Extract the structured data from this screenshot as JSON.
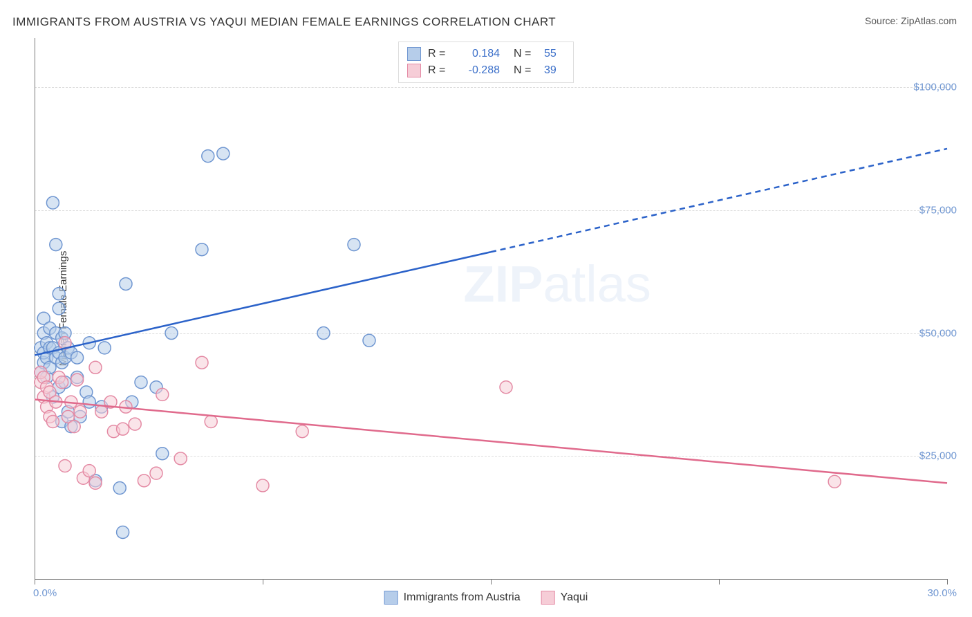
{
  "title": "IMMIGRANTS FROM AUSTRIA VS YAQUI MEDIAN FEMALE EARNINGS CORRELATION CHART",
  "source_prefix": "Source: ",
  "source_link": "ZipAtlas.com",
  "ylabel": "Median Female Earnings",
  "chart": {
    "type": "scatter",
    "xlim": [
      0,
      30
    ],
    "ylim": [
      0,
      110000
    ],
    "x_unit": "%",
    "y_prefix": "$",
    "grid_y": [
      25000,
      50000,
      75000,
      100000
    ],
    "grid_color": "#dddddd",
    "axis_color": "#777777",
    "background_color": "#ffffff",
    "y_tick_labels": [
      "$25,000",
      "$50,000",
      "$75,000",
      "$100,000"
    ],
    "x_tick_labels": {
      "left": "0.0%",
      "right": "30.0%"
    },
    "x_tick_marks": [
      0,
      7.5,
      15,
      22.5,
      30
    ],
    "marker_radius": 9,
    "marker_fill_opacity": 0.55,
    "marker_stroke_width": 1.5,
    "series": [
      {
        "name": "Immigrants from Austria",
        "color_fill": "#b6cdea",
        "color_stroke": "#6f96d1",
        "trend_color": "#2b62c9",
        "trend_width": 2.5,
        "R": "0.184",
        "N": "55",
        "trend": {
          "x1": 0,
          "y1": 45500,
          "x2": 30,
          "y2": 87500,
          "solid_until_x": 15,
          "dash": "8,6"
        },
        "points": [
          [
            0.2,
            42000
          ],
          [
            0.2,
            47000
          ],
          [
            0.3,
            44000
          ],
          [
            0.3,
            46000
          ],
          [
            0.3,
            50000
          ],
          [
            0.3,
            53000
          ],
          [
            0.4,
            41000
          ],
          [
            0.4,
            45000
          ],
          [
            0.4,
            48000
          ],
          [
            0.5,
            43000
          ],
          [
            0.5,
            47000
          ],
          [
            0.5,
            51000
          ],
          [
            0.6,
            37000
          ],
          [
            0.6,
            47000
          ],
          [
            0.6,
            76500
          ],
          [
            0.7,
            45000
          ],
          [
            0.7,
            50000
          ],
          [
            0.7,
            68000
          ],
          [
            0.8,
            39000
          ],
          [
            0.8,
            46000
          ],
          [
            0.8,
            55000
          ],
          [
            0.8,
            58000
          ],
          [
            0.9,
            32000
          ],
          [
            0.9,
            44000
          ],
          [
            0.9,
            49000
          ],
          [
            1.0,
            40000
          ],
          [
            1.0,
            45000
          ],
          [
            1.0,
            50000
          ],
          [
            1.1,
            34000
          ],
          [
            1.1,
            47000
          ],
          [
            1.2,
            31000
          ],
          [
            1.2,
            46000
          ],
          [
            1.4,
            41000
          ],
          [
            1.4,
            45000
          ],
          [
            1.5,
            33000
          ],
          [
            1.7,
            38000
          ],
          [
            1.8,
            36000
          ],
          [
            1.8,
            48000
          ],
          [
            2.0,
            20000
          ],
          [
            2.2,
            35000
          ],
          [
            2.3,
            47000
          ],
          [
            2.8,
            18500
          ],
          [
            2.9,
            9500
          ],
          [
            3.0,
            60000
          ],
          [
            3.2,
            36000
          ],
          [
            3.5,
            40000
          ],
          [
            4.0,
            39000
          ],
          [
            4.2,
            25500
          ],
          [
            4.5,
            50000
          ],
          [
            5.5,
            67000
          ],
          [
            5.7,
            86000
          ],
          [
            6.2,
            86500
          ],
          [
            9.5,
            50000
          ],
          [
            10.5,
            68000
          ],
          [
            11.0,
            48500
          ]
        ]
      },
      {
        "name": "Yaqui",
        "color_fill": "#f6cdd7",
        "color_stroke": "#e48aa4",
        "trend_color": "#e06a8c",
        "trend_width": 2.5,
        "R": "-0.288",
        "N": "39",
        "trend": {
          "x1": 0,
          "y1": 36500,
          "x2": 30,
          "y2": 19500,
          "solid_until_x": 30
        },
        "points": [
          [
            0.2,
            40000
          ],
          [
            0.2,
            42000
          ],
          [
            0.3,
            37000
          ],
          [
            0.3,
            41000
          ],
          [
            0.4,
            35000
          ],
          [
            0.4,
            39000
          ],
          [
            0.5,
            33000
          ],
          [
            0.5,
            38000
          ],
          [
            0.6,
            32000
          ],
          [
            0.7,
            36000
          ],
          [
            0.8,
            41000
          ],
          [
            0.9,
            40000
          ],
          [
            1.0,
            48000
          ],
          [
            1.0,
            23000
          ],
          [
            1.1,
            33000
          ],
          [
            1.2,
            36000
          ],
          [
            1.3,
            31000
          ],
          [
            1.4,
            40500
          ],
          [
            1.5,
            34000
          ],
          [
            1.6,
            20500
          ],
          [
            1.8,
            22000
          ],
          [
            2.0,
            19500
          ],
          [
            2.0,
            43000
          ],
          [
            2.2,
            34000
          ],
          [
            2.5,
            36000
          ],
          [
            2.6,
            30000
          ],
          [
            2.9,
            30500
          ],
          [
            3.0,
            35000
          ],
          [
            3.3,
            31500
          ],
          [
            3.6,
            20000
          ],
          [
            4.0,
            21500
          ],
          [
            4.2,
            37500
          ],
          [
            4.8,
            24500
          ],
          [
            5.5,
            44000
          ],
          [
            5.8,
            32000
          ],
          [
            7.5,
            19000
          ],
          [
            8.8,
            30000
          ],
          [
            15.5,
            39000
          ],
          [
            26.3,
            19800
          ]
        ]
      }
    ],
    "legend_top": {
      "r_label": "R =",
      "n_label": "N ="
    },
    "legend_bottom": [
      "Immigrants from Austria",
      "Yaqui"
    ],
    "watermark": {
      "bold": "ZIP",
      "rest": "atlas",
      "color": "#eef3fa",
      "fontsize": 74
    }
  }
}
